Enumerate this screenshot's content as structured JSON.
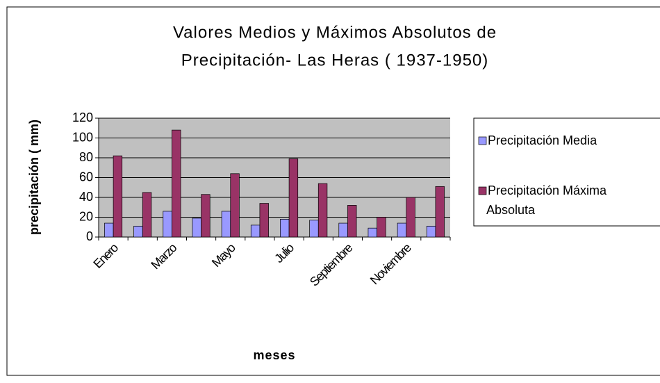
{
  "chart_data": {
    "type": "bar",
    "title": [
      "Valores Medios y Máximos Absolutos de",
      "Precipitación- Las Heras ( 1937-1950)"
    ],
    "x_label": "meses",
    "y_label": "precipitación ( mm)",
    "categories": [
      "Enero",
      null,
      "Marzo",
      null,
      "Mayo",
      null,
      "Julio",
      null,
      "Septiembre",
      null,
      "Noviembre",
      null
    ],
    "series": [
      {
        "name": "Precipitación Media",
        "color": "#9999ff",
        "values": [
          14,
          11,
          26,
          19,
          26,
          12,
          18,
          17,
          14,
          9,
          14,
          11
        ]
      },
      {
        "name": "Precipitación Máxima Absoluta",
        "color": "#993366",
        "values": [
          82,
          45,
          108,
          43,
          64,
          34,
          79,
          54,
          32,
          20,
          40,
          51
        ]
      }
    ],
    "ylim": [
      0,
      120
    ],
    "yticks": [
      0,
      20,
      40,
      60,
      80,
      100,
      120
    ],
    "grid": true,
    "legend": "right"
  }
}
